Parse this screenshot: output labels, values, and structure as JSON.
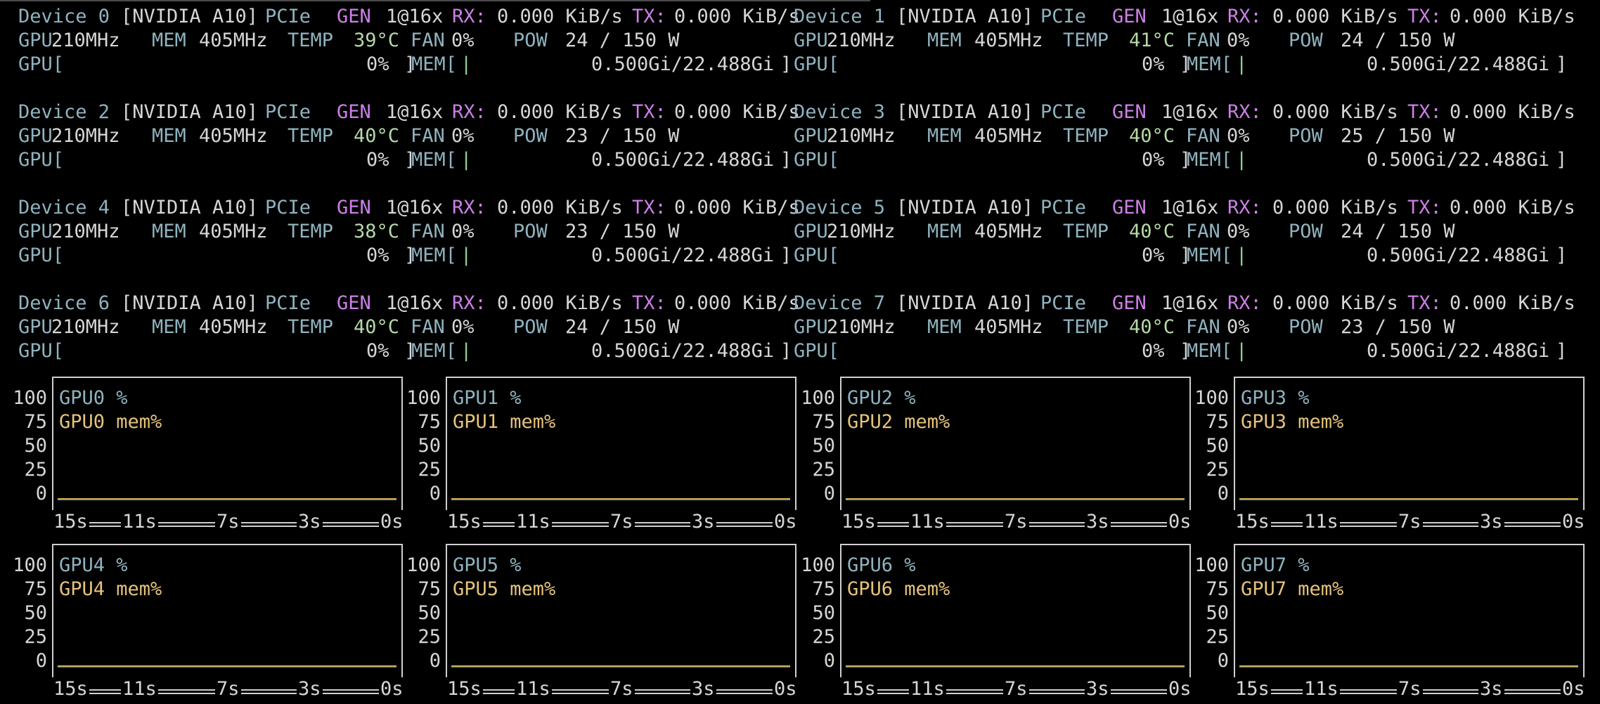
{
  "devices": [
    {
      "name": "Device 0",
      "model": "[NVIDIA A10]",
      "pcie": "1@16x",
      "rx": "0.000 KiB/s",
      "tx": "0.000 KiB/s",
      "gpu_clock": "210MHz",
      "mem_clock": "405MHz",
      "temp": "39°C",
      "fan": "0%",
      "pow": "24 / 150 W",
      "gpu_util": "0%",
      "mem_used": "0.500Gi/22.488Gi"
    },
    {
      "name": "Device 1",
      "model": "[NVIDIA A10]",
      "pcie": "1@16x",
      "rx": "0.000 KiB/s",
      "tx": "0.000 KiB/s",
      "gpu_clock": "210MHz",
      "mem_clock": "405MHz",
      "temp": "41°C",
      "fan": "0%",
      "pow": "24 / 150 W",
      "gpu_util": "0%",
      "mem_used": "0.500Gi/22.488Gi"
    },
    {
      "name": "Device 2",
      "model": "[NVIDIA A10]",
      "pcie": "1@16x",
      "rx": "0.000 KiB/s",
      "tx": "0.000 KiB/s",
      "gpu_clock": "210MHz",
      "mem_clock": "405MHz",
      "temp": "40°C",
      "fan": "0%",
      "pow": "23 / 150 W",
      "gpu_util": "0%",
      "mem_used": "0.500Gi/22.488Gi"
    },
    {
      "name": "Device 3",
      "model": "[NVIDIA A10]",
      "pcie": "1@16x",
      "rx": "0.000 KiB/s",
      "tx": "0.000 KiB/s",
      "gpu_clock": "210MHz",
      "mem_clock": "405MHz",
      "temp": "40°C",
      "fan": "0%",
      "pow": "25 / 150 W",
      "gpu_util": "0%",
      "mem_used": "0.500Gi/22.488Gi"
    },
    {
      "name": "Device 4",
      "model": "[NVIDIA A10]",
      "pcie": "1@16x",
      "rx": "0.000 KiB/s",
      "tx": "0.000 KiB/s",
      "gpu_clock": "210MHz",
      "mem_clock": "405MHz",
      "temp": "38°C",
      "fan": "0%",
      "pow": "23 / 150 W",
      "gpu_util": "0%",
      "mem_used": "0.500Gi/22.488Gi"
    },
    {
      "name": "Device 5",
      "model": "[NVIDIA A10]",
      "pcie": "1@16x",
      "rx": "0.000 KiB/s",
      "tx": "0.000 KiB/s",
      "gpu_clock": "210MHz",
      "mem_clock": "405MHz",
      "temp": "40°C",
      "fan": "0%",
      "pow": "24 / 150 W",
      "gpu_util": "0%",
      "mem_used": "0.500Gi/22.488Gi"
    },
    {
      "name": "Device 6",
      "model": "[NVIDIA A10]",
      "pcie": "1@16x",
      "rx": "0.000 KiB/s",
      "tx": "0.000 KiB/s",
      "gpu_clock": "210MHz",
      "mem_clock": "405MHz",
      "temp": "40°C",
      "fan": "0%",
      "pow": "24 / 150 W",
      "gpu_util": "0%",
      "mem_used": "0.500Gi/22.488Gi"
    },
    {
      "name": "Device 7",
      "model": "[NVIDIA A10]",
      "pcie": "1@16x",
      "rx": "0.000 KiB/s",
      "tx": "0.000 KiB/s",
      "gpu_clock": "210MHz",
      "mem_clock": "405MHz",
      "temp": "40°C",
      "fan": "0%",
      "pow": "23 / 150 W",
      "gpu_util": "0%",
      "mem_used": "0.500Gi/22.488Gi"
    }
  ],
  "labels": {
    "pcie": "PCIe",
    "gen": "GEN",
    "rx": "RX:",
    "tx": "TX:",
    "gpu": "GPU",
    "mem": "MEM",
    "temp": "TEMP",
    "fan": "FAN",
    "pow": "POW",
    "gpu_bar": "GPU[",
    "mem_bar": "MEM[",
    "bar_fill": "|",
    "bar_end": "]"
  },
  "colors": {
    "label": "#8fb3bf",
    "accent": "#cc7fe6",
    "temp": "#b5d9a8",
    "mem_series": "#e6c37a",
    "util_series": "#8fb3bf",
    "background": "#000000"
  },
  "chart_data": [
    {
      "type": "line",
      "title": "",
      "series": [
        {
          "name": "GPU0 %",
          "values": [
            0,
            0,
            0,
            0,
            0
          ]
        },
        {
          "name": "GPU0 mem%",
          "values": [
            0,
            0,
            0,
            0,
            0
          ]
        }
      ],
      "x": [
        "15s",
        "11s",
        "7s",
        "3s",
        "0s"
      ],
      "yticks": [
        "100",
        "75",
        "50",
        "25",
        "0"
      ],
      "ylim": [
        0,
        100
      ]
    },
    {
      "type": "line",
      "title": "",
      "series": [
        {
          "name": "GPU1 %",
          "values": [
            0,
            0,
            0,
            0,
            0
          ]
        },
        {
          "name": "GPU1 mem%",
          "values": [
            0,
            0,
            0,
            0,
            0
          ]
        }
      ],
      "x": [
        "15s",
        "11s",
        "7s",
        "3s",
        "0s"
      ],
      "yticks": [
        "100",
        "75",
        "50",
        "25",
        "0"
      ],
      "ylim": [
        0,
        100
      ]
    },
    {
      "type": "line",
      "title": "",
      "series": [
        {
          "name": "GPU2 %",
          "values": [
            0,
            0,
            0,
            0,
            0
          ]
        },
        {
          "name": "GPU2 mem%",
          "values": [
            0,
            0,
            0,
            0,
            0
          ]
        }
      ],
      "x": [
        "15s",
        "11s",
        "7s",
        "3s",
        "0s"
      ],
      "yticks": [
        "100",
        "75",
        "50",
        "25",
        "0"
      ],
      "ylim": [
        0,
        100
      ]
    },
    {
      "type": "line",
      "title": "",
      "series": [
        {
          "name": "GPU3 %",
          "values": [
            0,
            0,
            0,
            0,
            0
          ]
        },
        {
          "name": "GPU3 mem%",
          "values": [
            0,
            0,
            0,
            0,
            0
          ]
        }
      ],
      "x": [
        "15s",
        "11s",
        "7s",
        "3s",
        "0s"
      ],
      "yticks": [
        "100",
        "75",
        "50",
        "25",
        "0"
      ],
      "ylim": [
        0,
        100
      ]
    },
    {
      "type": "line",
      "title": "",
      "series": [
        {
          "name": "GPU4 %",
          "values": [
            0,
            0,
            0,
            0,
            0
          ]
        },
        {
          "name": "GPU4 mem%",
          "values": [
            0,
            0,
            0,
            0,
            0
          ]
        }
      ],
      "x": [
        "15s",
        "11s",
        "7s",
        "3s",
        "0s"
      ],
      "yticks": [
        "100",
        "75",
        "50",
        "25",
        "0"
      ],
      "ylim": [
        0,
        100
      ]
    },
    {
      "type": "line",
      "title": "",
      "series": [
        {
          "name": "GPU5 %",
          "values": [
            0,
            0,
            0,
            0,
            0
          ]
        },
        {
          "name": "GPU5 mem%",
          "values": [
            0,
            0,
            0,
            0,
            0
          ]
        }
      ],
      "x": [
        "15s",
        "11s",
        "7s",
        "3s",
        "0s"
      ],
      "yticks": [
        "100",
        "75",
        "50",
        "25",
        "0"
      ],
      "ylim": [
        0,
        100
      ]
    },
    {
      "type": "line",
      "title": "",
      "series": [
        {
          "name": "GPU6 %",
          "values": [
            0,
            0,
            0,
            0,
            0
          ]
        },
        {
          "name": "GPU6 mem%",
          "values": [
            0,
            0,
            0,
            0,
            0
          ]
        }
      ],
      "x": [
        "15s",
        "11s",
        "7s",
        "3s",
        "0s"
      ],
      "yticks": [
        "100",
        "75",
        "50",
        "25",
        "0"
      ],
      "ylim": [
        0,
        100
      ]
    },
    {
      "type": "line",
      "title": "",
      "series": [
        {
          "name": "GPU7 %",
          "values": [
            0,
            0,
            0,
            0,
            0
          ]
        },
        {
          "name": "GPU7 mem%",
          "values": [
            0,
            0,
            0,
            0,
            0
          ]
        }
      ],
      "x": [
        "15s",
        "11s",
        "7s",
        "3s",
        "0s"
      ],
      "yticks": [
        "100",
        "75",
        "50",
        "25",
        "0"
      ],
      "ylim": [
        0,
        100
      ]
    }
  ]
}
